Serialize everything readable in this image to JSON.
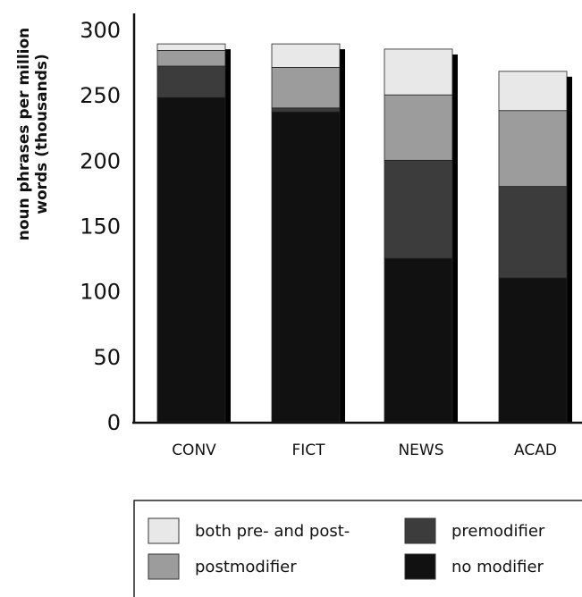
{
  "chart_data": {
    "type": "bar",
    "stacked": true,
    "categories": [
      "CONV",
      "FICT",
      "NEWS",
      "ACAD"
    ],
    "ylabel_line1": "noun phrases per million",
    "ylabel_line2": "words (thousands)",
    "ylim": [
      0,
      300
    ],
    "yticks": [
      "0",
      "50",
      "100",
      "150",
      "200",
      "250",
      "300"
    ],
    "series": [
      {
        "name": "no modifier",
        "color": "#111111",
        "values": [
          248,
          237,
          125,
          110
        ]
      },
      {
        "name": "premodifier",
        "color": "#3c3c3c",
        "values": [
          24,
          3,
          75,
          70
        ]
      },
      {
        "name": "postmodifier",
        "color": "#9c9c9c",
        "values": [
          12,
          31,
          50,
          58
        ]
      },
      {
        "name": "both pre- and post-",
        "color": "#e8e8e8",
        "values": [
          5,
          18,
          35,
          30
        ]
      }
    ],
    "legend": {
      "placement": "bottom",
      "order": [
        "both pre- and post-",
        "premodifier",
        "postmodifier",
        "no modifier"
      ]
    }
  }
}
